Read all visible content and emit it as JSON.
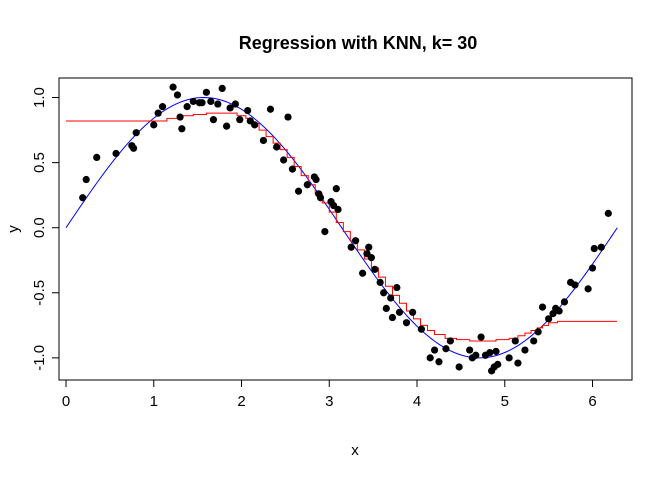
{
  "chart_data": {
    "type": "scatter",
    "title": "Regression with KNN, k= 30",
    "xlabel": "x",
    "ylabel": "y",
    "xlim": [
      -0.08,
      6.45
    ],
    "ylim": [
      -1.17,
      1.15
    ],
    "xticks": [
      0,
      1,
      2,
      3,
      4,
      5,
      6
    ],
    "yticks": [
      -1.0,
      -0.5,
      0.0,
      0.5,
      1.0
    ],
    "ytick_labels": [
      "-1.0",
      "-0.5",
      "0.0",
      "0.5",
      "1.0"
    ],
    "grid": false,
    "legend": "none",
    "colors": {
      "points": "#000000",
      "true_curve": "#0000ff",
      "knn_fit": "#ff0000",
      "frame": "#000000"
    },
    "points": [
      [
        0.19,
        0.23
      ],
      [
        0.23,
        0.37
      ],
      [
        0.35,
        0.54
      ],
      [
        0.57,
        0.57
      ],
      [
        0.75,
        0.63
      ],
      [
        0.77,
        0.61
      ],
      [
        0.8,
        0.73
      ],
      [
        1.0,
        0.79
      ],
      [
        1.05,
        0.88
      ],
      [
        1.1,
        0.93
      ],
      [
        1.22,
        1.08
      ],
      [
        1.27,
        1.02
      ],
      [
        1.3,
        0.85
      ],
      [
        1.32,
        0.76
      ],
      [
        1.38,
        0.93
      ],
      [
        1.45,
        0.97
      ],
      [
        1.52,
        0.96
      ],
      [
        1.55,
        0.96
      ],
      [
        1.6,
        1.04
      ],
      [
        1.65,
        0.97
      ],
      [
        1.68,
        0.83
      ],
      [
        1.73,
        0.95
      ],
      [
        1.78,
        1.07
      ],
      [
        1.83,
        0.78
      ],
      [
        1.87,
        0.92
      ],
      [
        1.93,
        0.95
      ],
      [
        1.98,
        0.83
      ],
      [
        2.07,
        0.9
      ],
      [
        2.1,
        0.82
      ],
      [
        2.15,
        0.79
      ],
      [
        2.25,
        0.67
      ],
      [
        2.33,
        0.91
      ],
      [
        2.4,
        0.62
      ],
      [
        2.48,
        0.52
      ],
      [
        2.53,
        0.85
      ],
      [
        2.58,
        0.45
      ],
      [
        2.65,
        0.28
      ],
      [
        2.75,
        0.33
      ],
      [
        2.83,
        0.39
      ],
      [
        2.85,
        0.37
      ],
      [
        2.88,
        0.26
      ],
      [
        2.9,
        0.23
      ],
      [
        2.95,
        -0.03
      ],
      [
        3.02,
        0.2
      ],
      [
        3.05,
        0.17
      ],
      [
        3.08,
        0.3
      ],
      [
        3.1,
        0.14
      ],
      [
        3.25,
        -0.15
      ],
      [
        3.3,
        -0.1
      ],
      [
        3.38,
        -0.35
      ],
      [
        3.43,
        -0.2
      ],
      [
        3.45,
        -0.15
      ],
      [
        3.48,
        -0.23
      ],
      [
        3.52,
        -0.32
      ],
      [
        3.58,
        -0.42
      ],
      [
        3.62,
        -0.5
      ],
      [
        3.65,
        -0.62
      ],
      [
        3.7,
        -0.54
      ],
      [
        3.72,
        -0.69
      ],
      [
        3.77,
        -0.46
      ],
      [
        3.8,
        -0.65
      ],
      [
        3.88,
        -0.73
      ],
      [
        3.95,
        -0.65
      ],
      [
        4.05,
        -0.78
      ],
      [
        4.15,
        -1.0
      ],
      [
        4.2,
        -0.94
      ],
      [
        4.25,
        -1.03
      ],
      [
        4.33,
        -0.93
      ],
      [
        4.38,
        -0.87
      ],
      [
        4.48,
        -1.07
      ],
      [
        4.6,
        -0.94
      ],
      [
        4.63,
        -1.0
      ],
      [
        4.67,
        -0.98
      ],
      [
        4.73,
        -0.84
      ],
      [
        4.78,
        -0.98
      ],
      [
        4.83,
        -0.96
      ],
      [
        4.85,
        -1.1
      ],
      [
        4.88,
        -1.07
      ],
      [
        4.9,
        -0.95
      ],
      [
        4.92,
        -1.05
      ],
      [
        5.05,
        -1.0
      ],
      [
        5.12,
        -0.87
      ],
      [
        5.15,
        -1.04
      ],
      [
        5.23,
        -0.94
      ],
      [
        5.33,
        -0.87
      ],
      [
        5.38,
        -0.8
      ],
      [
        5.43,
        -0.61
      ],
      [
        5.5,
        -0.7
      ],
      [
        5.55,
        -0.66
      ],
      [
        5.58,
        -0.62
      ],
      [
        5.62,
        -0.64
      ],
      [
        5.68,
        -0.57
      ],
      [
        5.75,
        -0.42
      ],
      [
        5.8,
        -0.44
      ],
      [
        5.95,
        -0.47
      ],
      [
        6.0,
        -0.31
      ],
      [
        6.02,
        -0.16
      ],
      [
        6.1,
        -0.15
      ],
      [
        6.18,
        0.11
      ]
    ],
    "true_curve": {
      "name": "sin(x)",
      "x_range": [
        0,
        6.283
      ],
      "samples": 160
    },
    "knn_fit": [
      [
        0.0,
        0.82
      ],
      [
        1.0,
        0.82
      ],
      [
        1.15,
        0.84
      ],
      [
        1.3,
        0.86
      ],
      [
        1.45,
        0.87
      ],
      [
        1.6,
        0.88
      ],
      [
        1.85,
        0.88
      ],
      [
        1.95,
        0.86
      ],
      [
        2.05,
        0.84
      ],
      [
        2.12,
        0.8
      ],
      [
        2.2,
        0.75
      ],
      [
        2.28,
        0.7
      ],
      [
        2.36,
        0.65
      ],
      [
        2.44,
        0.6
      ],
      [
        2.52,
        0.54
      ],
      [
        2.6,
        0.47
      ],
      [
        2.68,
        0.4
      ],
      [
        2.76,
        0.33
      ],
      [
        2.84,
        0.26
      ],
      [
        2.92,
        0.19
      ],
      [
        3.0,
        0.12
      ],
      [
        3.08,
        0.04
      ],
      [
        3.16,
        -0.03
      ],
      [
        3.24,
        -0.1
      ],
      [
        3.32,
        -0.17
      ],
      [
        3.4,
        -0.24
      ],
      [
        3.48,
        -0.31
      ],
      [
        3.56,
        -0.38
      ],
      [
        3.64,
        -0.45
      ],
      [
        3.72,
        -0.52
      ],
      [
        3.8,
        -0.58
      ],
      [
        3.88,
        -0.64
      ],
      [
        3.96,
        -0.7
      ],
      [
        4.04,
        -0.75
      ],
      [
        4.12,
        -0.79
      ],
      [
        4.2,
        -0.82
      ],
      [
        4.32,
        -0.85
      ],
      [
        4.45,
        -0.86
      ],
      [
        4.6,
        -0.87
      ],
      [
        4.75,
        -0.87
      ],
      [
        4.9,
        -0.86
      ],
      [
        5.05,
        -0.85
      ],
      [
        5.15,
        -0.83
      ],
      [
        5.23,
        -0.81
      ],
      [
        5.3,
        -0.79
      ],
      [
        5.37,
        -0.77
      ],
      [
        5.43,
        -0.75
      ],
      [
        5.5,
        -0.73
      ],
      [
        5.6,
        -0.72
      ],
      [
        6.28,
        -0.72
      ]
    ]
  }
}
